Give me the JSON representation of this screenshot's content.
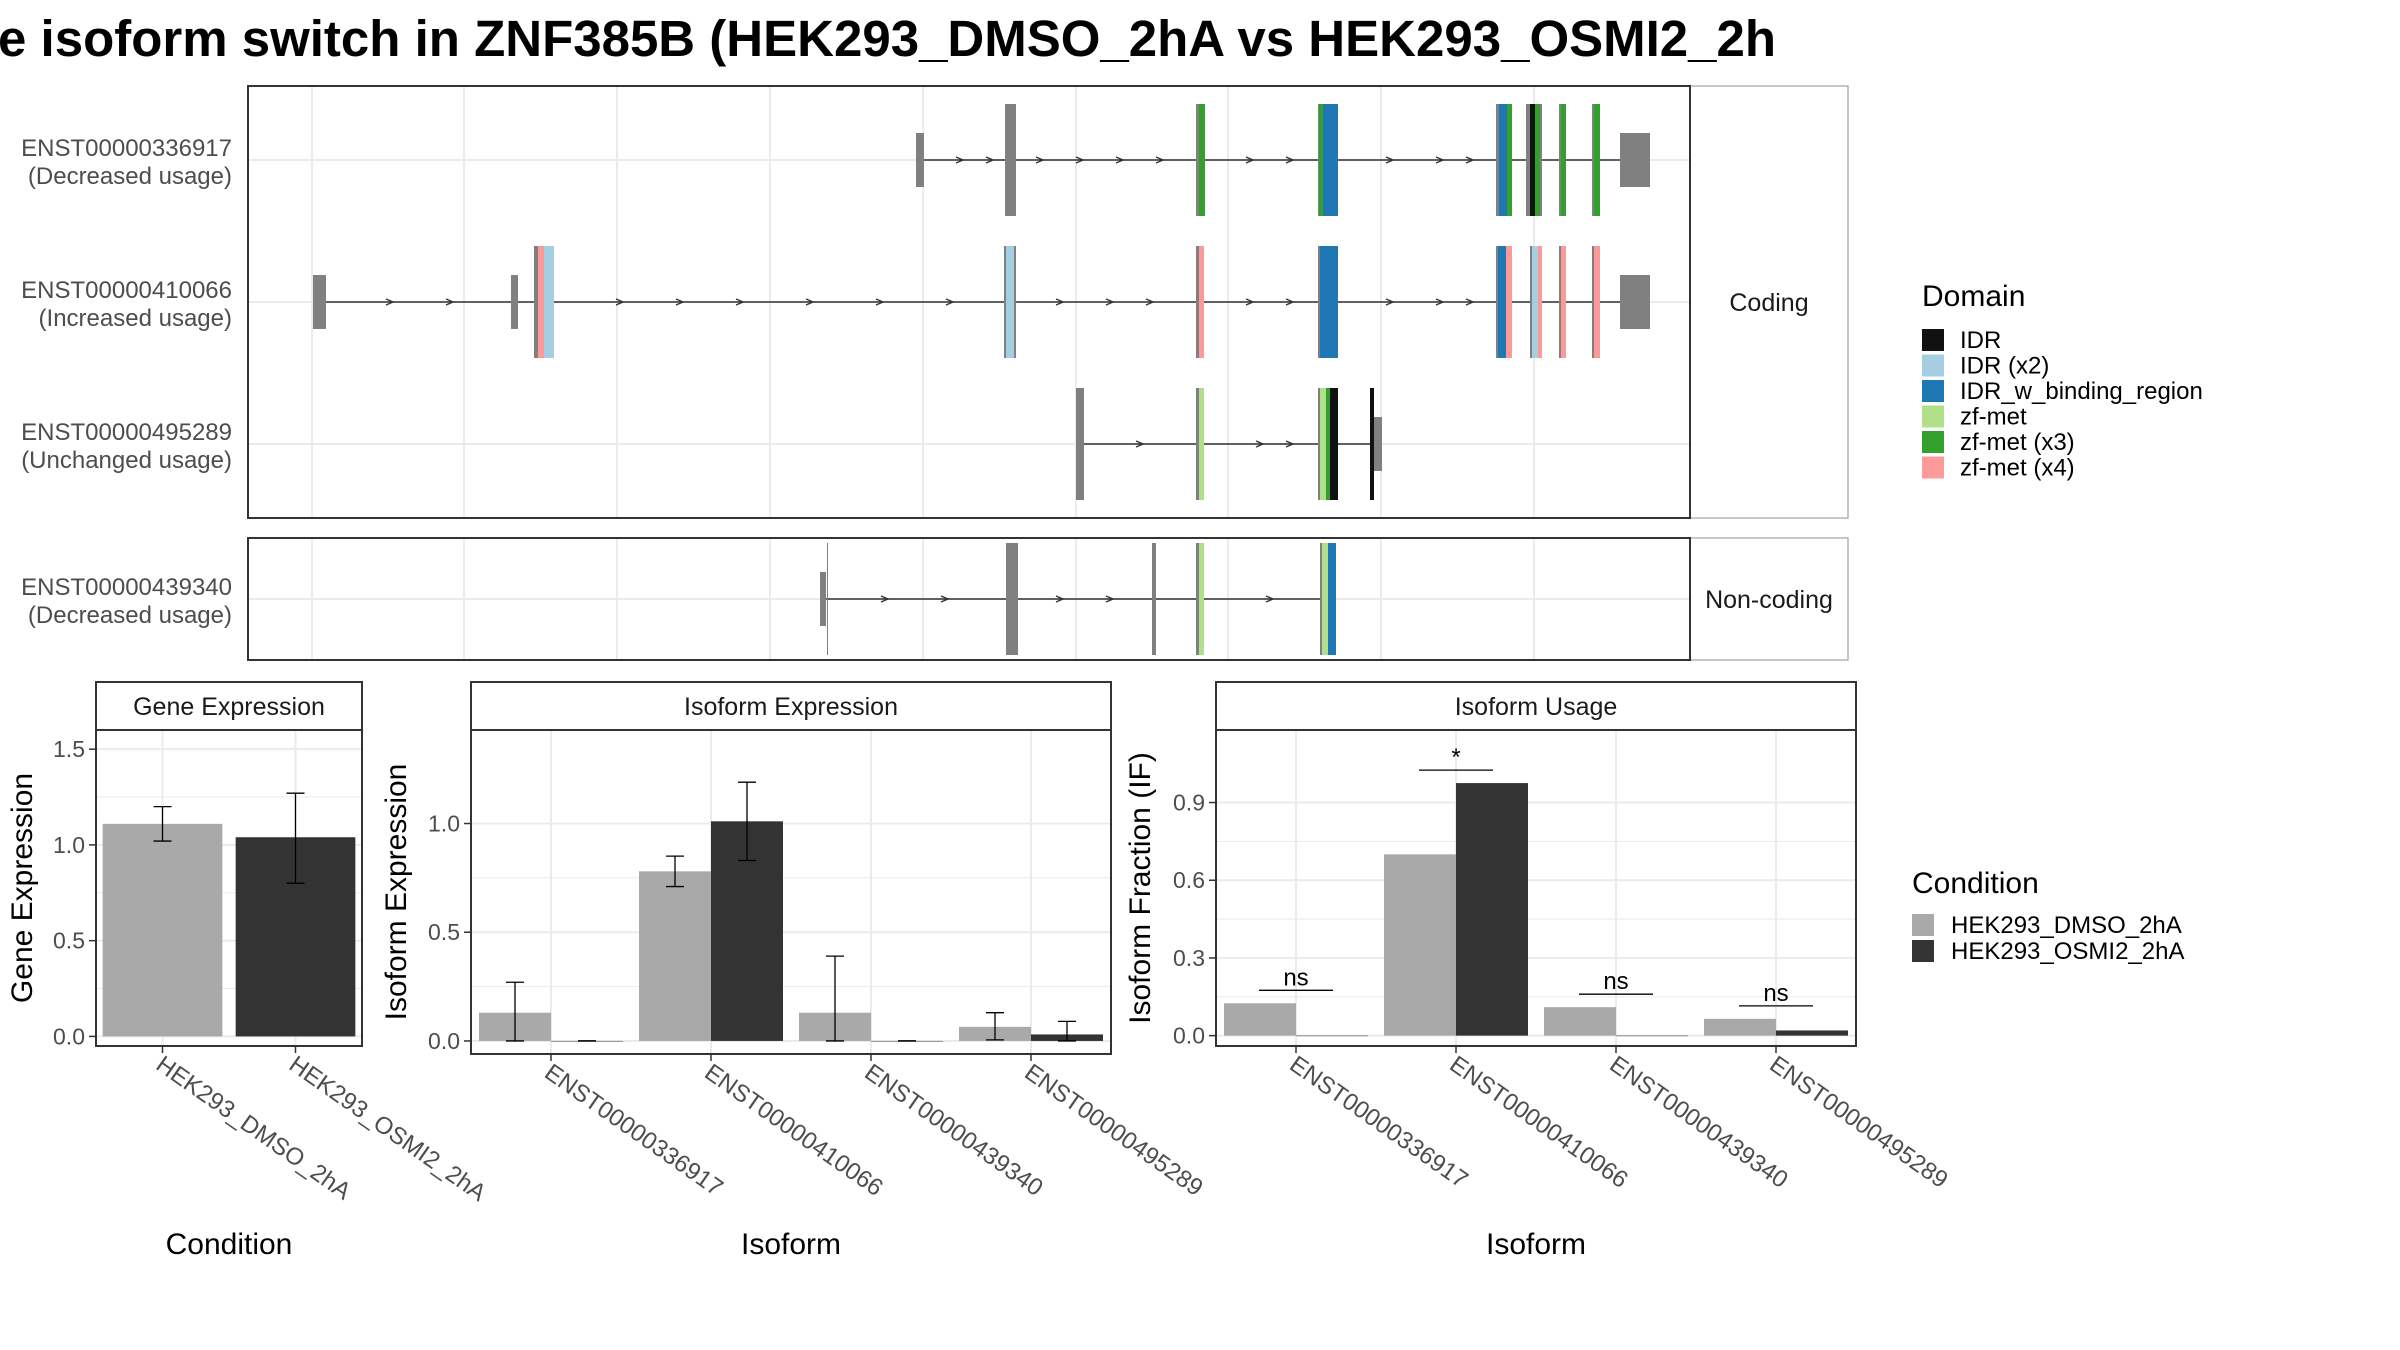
{
  "title": "e isoform switch in ZNF385B (HEK293_DMSO_2hA vs HEK293_OSMI2_2h",
  "colors": {
    "IDR": "#111111",
    "IDR (x2)": "#a6cee3",
    "IDR_w_binding_region": "#1f78b4",
    "zf-met": "#b2df8a",
    "zf-met (x3)": "#33a02c",
    "zf-met (x4)": "#fb9a99",
    "exon": "#808080",
    "cond1": "#a9a9a9",
    "cond2": "#333333",
    "panel_border": "#333333",
    "strip_border": "#b3b3b3",
    "grid": "#ebebeb"
  },
  "transcript_panel": {
    "strips": [
      "Coding",
      "Non-coding"
    ],
    "transcripts": [
      {
        "id": "ENST00000336917",
        "usage": "(Decreased usage)",
        "group": "Coding"
      },
      {
        "id": "ENST00000410066",
        "usage": "(Increased usage)",
        "group": "Coding"
      },
      {
        "id": "ENST00000495289",
        "usage": "(Unchanged usage)",
        "group": "Coding"
      },
      {
        "id": "ENST00000439340",
        "usage": "(Decreased usage)",
        "group": "Non-coding"
      }
    ]
  },
  "domain_legend": {
    "title": "Domain",
    "items": [
      "IDR",
      "IDR (x2)",
      "IDR_w_binding_region",
      "zf-met",
      "zf-met (x3)",
      "zf-met (x4)"
    ]
  },
  "condition_legend": {
    "title": "Condition",
    "items": [
      "HEK293_DMSO_2hA",
      "HEK293_OSMI2_2hA"
    ]
  },
  "chart_data": [
    {
      "type": "bar",
      "strip": "Gene Expression",
      "xlabel": "Condition",
      "ylabel": "Gene Expression",
      "categories": [
        "HEK293_DMSO_2hA",
        "HEK293_OSMI2_2hA"
      ],
      "values": [
        1.11,
        1.04
      ],
      "error_low": [
        1.02,
        0.8
      ],
      "error_high": [
        1.2,
        1.27
      ],
      "ylim": [
        -0.05,
        1.6
      ],
      "yticks": [
        0.0,
        0.5,
        1.0,
        1.5
      ],
      "yticklabels": [
        "0.0",
        "0.5",
        "1.0",
        "1.5"
      ]
    },
    {
      "type": "bar",
      "strip": "Isoform Expression",
      "xlabel": "Isoform",
      "ylabel": "Isoform Expression",
      "categories": [
        "ENST00000336917",
        "ENST00000410066",
        "ENST00000439340",
        "ENST00000495289"
      ],
      "series": [
        {
          "name": "HEK293_DMSO_2hA",
          "values": [
            0.13,
            0.78,
            0.13,
            0.065
          ],
          "error_low": [
            0.0,
            0.71,
            0.0,
            0.005
          ],
          "error_high": [
            0.27,
            0.85,
            0.39,
            0.13
          ]
        },
        {
          "name": "HEK293_OSMI2_2hA",
          "values": [
            0.0,
            1.01,
            0.0,
            0.03
          ],
          "error_low": [
            0.0,
            0.83,
            0.0,
            0.0
          ],
          "error_high": [
            0.0,
            1.19,
            0.0,
            0.09
          ]
        }
      ],
      "ylim": [
        -0.06,
        1.43
      ],
      "yticks": [
        0.0,
        0.5,
        1.0
      ],
      "yticklabels": [
        "0.0",
        "0.5",
        "1.0"
      ]
    },
    {
      "type": "bar",
      "strip": "Isoform Usage",
      "xlabel": "Isoform",
      "ylabel": "Isoform Fraction (IF)",
      "categories": [
        "ENST00000336917",
        "ENST00000410066",
        "ENST00000439340",
        "ENST00000495289"
      ],
      "series": [
        {
          "name": "HEK293_DMSO_2hA",
          "values": [
            0.125,
            0.7,
            0.11,
            0.065
          ]
        },
        {
          "name": "HEK293_OSMI2_2hA",
          "values": [
            0.0,
            0.975,
            0.0,
            0.02
          ]
        }
      ],
      "significance": [
        {
          "label": "ns",
          "y": 0.175
        },
        {
          "label": "*",
          "y": 1.025
        },
        {
          "label": "ns",
          "y": 0.16
        },
        {
          "label": "ns",
          "y": 0.115
        }
      ],
      "ylim": [
        -0.04,
        1.18
      ],
      "yticks": [
        0.0,
        0.3,
        0.6,
        0.9
      ],
      "yticklabels": [
        "0.0",
        "0.3",
        "0.6",
        "0.9"
      ]
    }
  ]
}
